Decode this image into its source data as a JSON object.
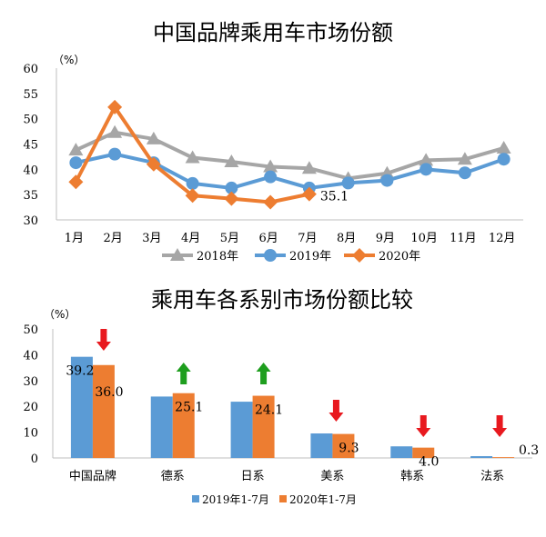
{
  "charts": [
    {
      "type": "line",
      "title": "中国品牌乘用车市场份额",
      "unit": "（%）",
      "categories": [
        "1月",
        "2月",
        "3月",
        "4月",
        "5月",
        "6月",
        "7月",
        "8月",
        "9月",
        "10月",
        "11月",
        "12月"
      ],
      "ylim": [
        30,
        60
      ],
      "yticks": [
        30,
        35,
        40,
        45,
        50,
        55,
        60
      ],
      "grid": false,
      "legend_position": "bottom",
      "series": [
        {
          "name": "2018年",
          "color": "#a6a6a6",
          "marker": "triangle",
          "values": [
            43.8,
            47.3,
            46.0,
            42.3,
            41.5,
            40.5,
            40.2,
            38.2,
            39.2,
            41.8,
            42.0,
            44.2
          ]
        },
        {
          "name": "2019年",
          "color": "#5b9bd5",
          "marker": "circle",
          "values": [
            41.3,
            43.0,
            41.3,
            37.2,
            36.3,
            38.5,
            36.3,
            37.3,
            37.8,
            40.0,
            39.3,
            42.0
          ]
        },
        {
          "name": "2020年",
          "color": "#ed7d31",
          "marker": "diamond",
          "values": [
            37.5,
            52.3,
            41.0,
            34.8,
            34.2,
            33.5,
            35.1,
            null,
            null,
            null,
            null,
            null
          ]
        }
      ],
      "annotation": {
        "text": "35.1",
        "series_index": 2,
        "category_index": 6
      }
    },
    {
      "type": "bar",
      "title": "乘用车各系别市场份额比较",
      "unit": "（%）",
      "categories": [
        "中国品牌",
        "德系",
        "日系",
        "美系",
        "韩系",
        "法系"
      ],
      "ylim": [
        0,
        50
      ],
      "yticks": [
        0,
        10,
        20,
        30,
        40,
        50
      ],
      "grid": false,
      "legend_position": "bottom",
      "series": [
        {
          "name": "2019年1-7月",
          "color": "#5b9bd5",
          "values": [
            39.2,
            23.8,
            21.8,
            9.5,
            4.5,
            0.7
          ]
        },
        {
          "name": "2020年1-7月",
          "color": "#ed7d31",
          "values": [
            36.0,
            25.1,
            24.1,
            9.3,
            4.0,
            0.3
          ]
        }
      ],
      "data_labels": [
        {
          "text": "39.2",
          "series_index": 0,
          "category_index": 0
        },
        {
          "text": "36.0",
          "series_index": 1,
          "category_index": 0
        },
        {
          "text": "25.1",
          "series_index": 1,
          "category_index": 1
        },
        {
          "text": "24.1",
          "series_index": 1,
          "category_index": 2
        },
        {
          "text": "9.3",
          "series_index": 1,
          "category_index": 3
        },
        {
          "text": "4.0",
          "series_index": 1,
          "category_index": 4
        },
        {
          "text": "0.3",
          "series_index": 1,
          "category_index": 5
        }
      ],
      "trend_arrows": [
        "down",
        "up",
        "up",
        "down",
        "down",
        "down"
      ],
      "arrow_colors": {
        "up": "#1e9e1e",
        "down": "#e8191f"
      }
    }
  ]
}
